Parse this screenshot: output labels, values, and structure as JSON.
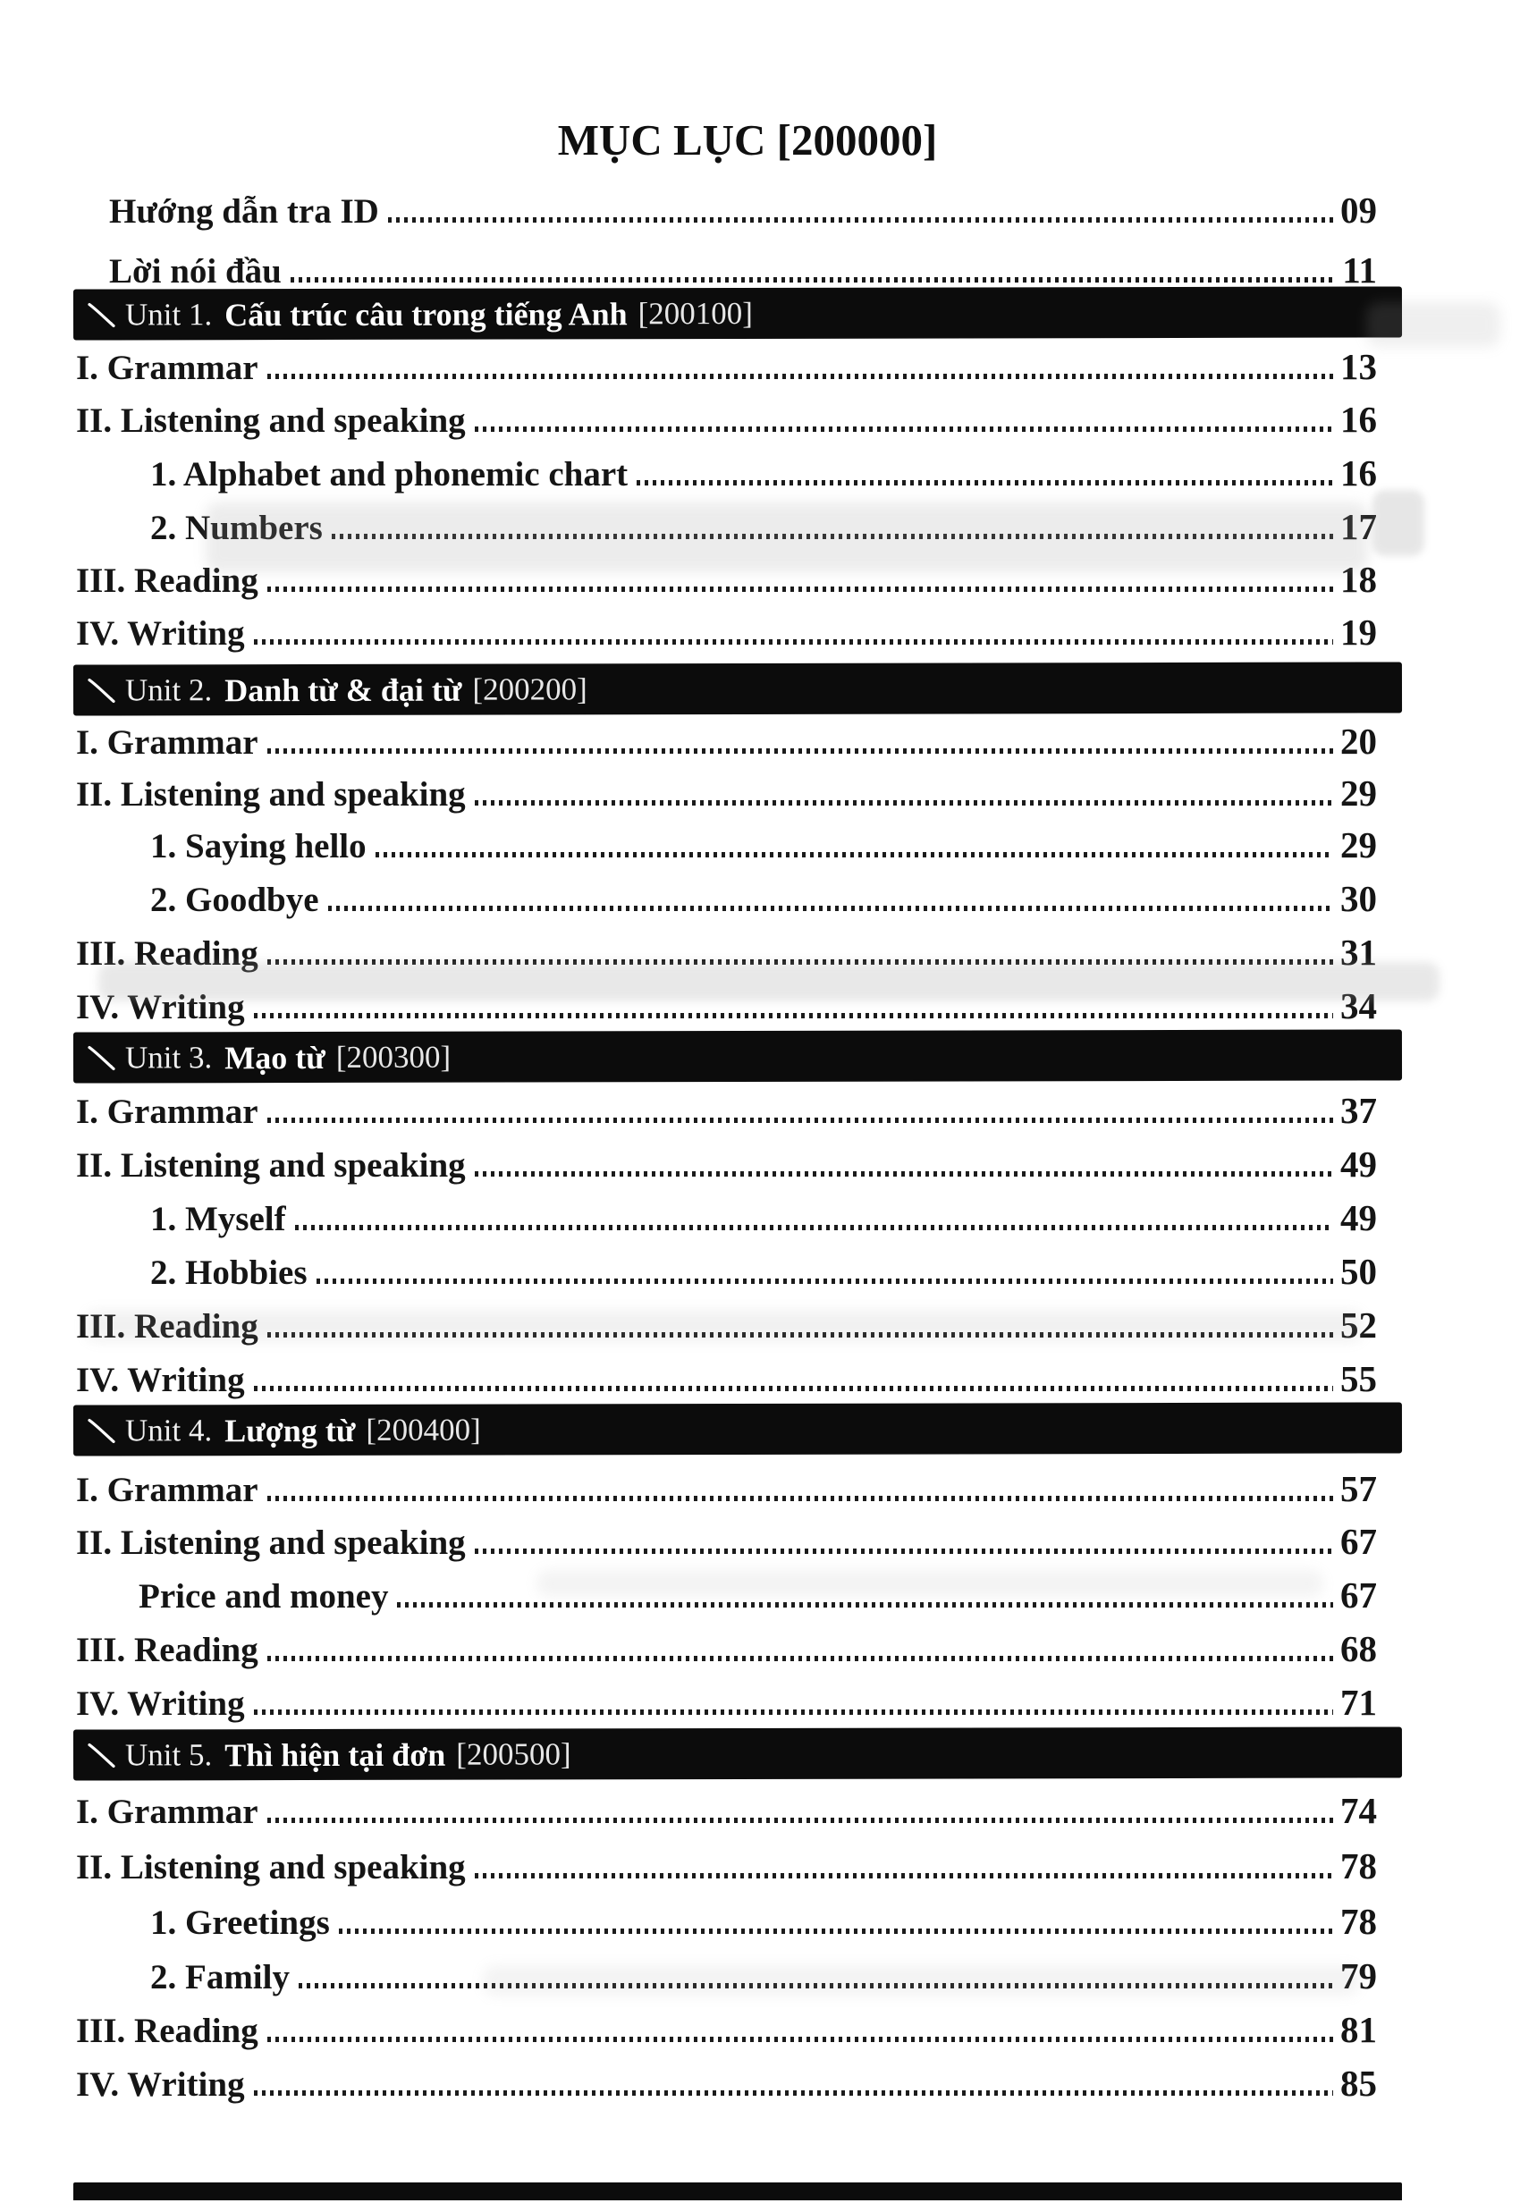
{
  "page_title": "MỤC LỤC [200000]",
  "intro_entries": [
    {
      "label": "Hướng dẫn tra ID",
      "page": "09"
    },
    {
      "label": "Lời nói đầu",
      "page": "11"
    }
  ],
  "units": [
    {
      "unit_label": "Unit 1.",
      "title": "Cấu trúc câu trong tiếng Anh",
      "code": "[200100]",
      "entries": [
        {
          "label": "I. Grammar",
          "page": "13",
          "indent": 0
        },
        {
          "label": "II. Listening and speaking",
          "page": "16",
          "indent": 0
        },
        {
          "label": "1. Alphabet and phonemic chart",
          "page": "16",
          "indent": 1
        },
        {
          "label": "2. Numbers",
          "page": "17",
          "indent": 1
        },
        {
          "label": "III. Reading",
          "page": "18",
          "indent": 0
        },
        {
          "label": "IV. Writing",
          "page": "19",
          "indent": 0
        }
      ]
    },
    {
      "unit_label": "Unit 2.",
      "title": "Danh từ & đại từ",
      "code": "[200200]",
      "entries": [
        {
          "label": "I. Grammar",
          "page": "20",
          "indent": 0
        },
        {
          "label": "II. Listening and speaking",
          "page": "29",
          "indent": 0
        },
        {
          "label": "1. Saying hello",
          "page": "29",
          "indent": 1
        },
        {
          "label": "2. Goodbye",
          "page": "30",
          "indent": 1
        },
        {
          "label": "III. Reading",
          "page": "31",
          "indent": 0
        },
        {
          "label": "IV. Writing",
          "page": "34",
          "indent": 0
        }
      ]
    },
    {
      "unit_label": "Unit 3.",
      "title": "Mạo từ",
      "code": "[200300]",
      "entries": [
        {
          "label": "I. Grammar",
          "page": "37",
          "indent": 0
        },
        {
          "label": "II. Listening and speaking",
          "page": "49",
          "indent": 0
        },
        {
          "label": "1. Myself",
          "page": "49",
          "indent": 1
        },
        {
          "label": "2. Hobbies",
          "page": "50",
          "indent": 1
        },
        {
          "label": "III. Reading",
          "page": "52",
          "indent": 0
        },
        {
          "label": "IV. Writing",
          "page": "55",
          "indent": 0
        }
      ]
    },
    {
      "unit_label": "Unit 4.",
      "title": "Lượng từ",
      "code": "[200400]",
      "entries": [
        {
          "label": "I. Grammar",
          "page": "57",
          "indent": 0
        },
        {
          "label": "II. Listening and speaking",
          "page": "67",
          "indent": 0
        },
        {
          "label": "Price and money",
          "page": "67",
          "indent": 2
        },
        {
          "label": "III. Reading",
          "page": "68",
          "indent": 0
        },
        {
          "label": "IV. Writing",
          "page": "71",
          "indent": 0
        }
      ]
    },
    {
      "unit_label": "Unit 5.",
      "title": "Thì hiện tại đơn",
      "code": "[200500]",
      "entries": [
        {
          "label": "I. Grammar",
          "page": "74",
          "indent": 0
        },
        {
          "label": "II. Listening and speaking",
          "page": "78",
          "indent": 0
        },
        {
          "label": "1. Greetings",
          "page": "78",
          "indent": 1
        },
        {
          "label": "2. Family",
          "page": "79",
          "indent": 1
        },
        {
          "label": "III. Reading",
          "page": "81",
          "indent": 0
        },
        {
          "label": "IV. Writing",
          "page": "85",
          "indent": 0
        }
      ]
    }
  ],
  "bottom_partial_bar": {
    "visible": true
  },
  "colors": {
    "paper": "#ffffff",
    "body_text": "#161616",
    "bar_background": "#0c0c0c",
    "bar_text": "#ffffff"
  }
}
